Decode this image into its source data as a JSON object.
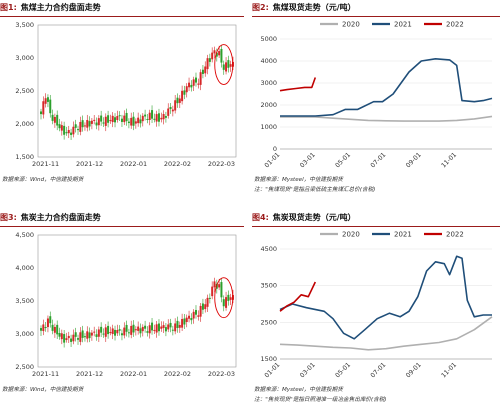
{
  "panels": [
    {
      "fig": "图1:",
      "title": "焦煤主力合约盘面走势",
      "source": "数据来源：Wind，中信建投期货",
      "note": ""
    },
    {
      "fig": "图2:",
      "title": "焦煤现货走势（元/吨）",
      "source": "数据来源：Mysteel，中信建投期货",
      "note": "注：\"焦煤现货\"是指吕梁低硫主焦煤汇总价(含税)"
    },
    {
      "fig": "图3:",
      "title": "焦炭主力合约盘面走势",
      "source": "数据来源：Wind，中信建投期货",
      "note": ""
    },
    {
      "fig": "图4:",
      "title": "焦炭现货走势（元/吨）",
      "source": "数据来源：Mysteel，中信建投期货",
      "note": "注：\"焦炭现货\"是指日照港准一级冶金焦出库价(含税)"
    }
  ],
  "chart_data": [
    {
      "type": "candlestick",
      "title": "焦煤主力合约盘面走势",
      "ylim": [
        1500,
        3500
      ],
      "yticks": [
        "3,500",
        "3,000",
        "2,500",
        "2,000",
        "1,500"
      ],
      "categories": [
        "2021-11",
        "2021-12",
        "2022-01",
        "2022-02",
        "2022-03"
      ],
      "up_color": "#d62728",
      "down_color": "#2ca02c",
      "close_points": [
        [
          0,
          2150
        ],
        [
          2,
          2450
        ],
        [
          4,
          2150
        ],
        [
          7,
          2000
        ],
        [
          11,
          1850
        ],
        [
          16,
          1960
        ],
        [
          22,
          2030
        ],
        [
          28,
          2050
        ],
        [
          34,
          2100
        ],
        [
          40,
          2020
        ],
        [
          46,
          2120
        ],
        [
          52,
          2080
        ],
        [
          58,
          2300
        ],
        [
          62,
          2500
        ],
        [
          64,
          2600
        ],
        [
          68,
          2650
        ],
        [
          72,
          2950
        ],
        [
          75,
          3100
        ],
        [
          77,
          3050
        ],
        [
          79,
          2850
        ],
        [
          81,
          2900
        ]
      ],
      "annotation": "red ellipse around latest candles"
    },
    {
      "type": "line",
      "title": "焦煤现货走势（元/吨）",
      "ylim": [
        0,
        5000
      ],
      "yticks": [
        "5000",
        "4000",
        "3000",
        "2000",
        "1000",
        "0"
      ],
      "xticks": [
        "01-01",
        "03-01",
        "05-01",
        "07-01",
        "09-01",
        "11-01"
      ],
      "legend_position": "top",
      "series": [
        {
          "name": "2020",
          "color": "#b0b0b0",
          "values": [
            [
              0,
              1460
            ],
            [
              2,
              1460
            ],
            [
              3,
              1400
            ],
            [
              4,
              1350
            ],
            [
              5,
              1300
            ],
            [
              6,
              1280
            ],
            [
              7,
              1270
            ],
            [
              8,
              1270
            ],
            [
              9,
              1270
            ],
            [
              10,
              1300
            ],
            [
              11,
              1370
            ],
            [
              12,
              1480
            ]
          ]
        },
        {
          "name": "2021",
          "color": "#1f4e79",
          "values": [
            [
              0,
              1500
            ],
            [
              1,
              1500
            ],
            [
              2,
              1500
            ],
            [
              3,
              1560
            ],
            [
              3.7,
              1800
            ],
            [
              4.4,
              1800
            ],
            [
              5.3,
              2150
            ],
            [
              5.8,
              2150
            ],
            [
              6.4,
              2500
            ],
            [
              7.3,
              3500
            ],
            [
              8,
              4000
            ],
            [
              8.8,
              4100
            ],
            [
              9.6,
              4050
            ],
            [
              10,
              3800
            ],
            [
              10.3,
              2200
            ],
            [
              11,
              2150
            ],
            [
              11.5,
              2200
            ],
            [
              12,
              2300
            ]
          ]
        },
        {
          "name": "2022",
          "color": "#c00000",
          "values": [
            [
              0,
              2650
            ],
            [
              0.4,
              2700
            ],
            [
              0.9,
              2750
            ],
            [
              1.4,
              2800
            ],
            [
              1.8,
              2800
            ],
            [
              2.0,
              3250
            ]
          ]
        }
      ]
    },
    {
      "type": "candlestick",
      "title": "焦炭主力合约盘面走势",
      "ylim": [
        2500,
        4500
      ],
      "yticks": [
        "4,500",
        "4,000",
        "3,500",
        "3,000",
        "2,500"
      ],
      "categories": [
        "2021-11",
        "2021-12",
        "2022-01",
        "2022-02",
        "2022-03"
      ],
      "up_color": "#d62728",
      "down_color": "#2ca02c",
      "close_points": [
        [
          0,
          3050
        ],
        [
          3,
          3200
        ],
        [
          6,
          3050
        ],
        [
          10,
          2920
        ],
        [
          16,
          2960
        ],
        [
          22,
          3000
        ],
        [
          28,
          3040
        ],
        [
          34,
          3030
        ],
        [
          40,
          3070
        ],
        [
          46,
          3070
        ],
        [
          52,
          3100
        ],
        [
          58,
          3100
        ],
        [
          64,
          3250
        ],
        [
          68,
          3320
        ],
        [
          72,
          3500
        ],
        [
          75,
          3780
        ],
        [
          77,
          3700
        ],
        [
          79,
          3450
        ],
        [
          81,
          3550
        ]
      ],
      "annotation": "red ellipse around latest candles"
    },
    {
      "type": "line",
      "title": "焦炭现货走势（元/吨）",
      "ylim": [
        1500,
        4500
      ],
      "yticks": [
        "4500",
        "3500",
        "2500",
        "1500"
      ],
      "xticks": [
        "01-01",
        "03-01",
        "05-01",
        "07-01",
        "09-01",
        "11-01"
      ],
      "legend_position": "top",
      "series": [
        {
          "name": "2020",
          "color": "#b0b0b0",
          "values": [
            [
              0,
              1900
            ],
            [
              1,
              1880
            ],
            [
              2,
              1850
            ],
            [
              3,
              1820
            ],
            [
              4,
              1800
            ],
            [
              5,
              1750
            ],
            [
              6,
              1780
            ],
            [
              7,
              1850
            ],
            [
              8,
              1900
            ],
            [
              9,
              1950
            ],
            [
              10,
              2050
            ],
            [
              11,
              2300
            ],
            [
              12,
              2650
            ]
          ]
        },
        {
          "name": "2021",
          "color": "#1f4e79",
          "values": [
            [
              0,
              2850
            ],
            [
              0.7,
              3000
            ],
            [
              1.5,
              2900
            ],
            [
              2.5,
              2800
            ],
            [
              3,
              2600
            ],
            [
              3.6,
              2200
            ],
            [
              4.2,
              2050
            ],
            [
              4.8,
              2300
            ],
            [
              5.5,
              2600
            ],
            [
              6.2,
              2750
            ],
            [
              6.8,
              2650
            ],
            [
              7.3,
              2800
            ],
            [
              7.8,
              3200
            ],
            [
              8.3,
              3900
            ],
            [
              8.8,
              4150
            ],
            [
              9.3,
              4100
            ],
            [
              9.6,
              3800
            ],
            [
              10,
              4300
            ],
            [
              10.3,
              4250
            ],
            [
              10.6,
              3100
            ],
            [
              11,
              2650
            ],
            [
              11.5,
              2700
            ],
            [
              12,
              2700
            ]
          ]
        },
        {
          "name": "2022",
          "color": "#c00000",
          "values": [
            [
              0,
              2800
            ],
            [
              0.4,
              2950
            ],
            [
              0.8,
              3050
            ],
            [
              1.2,
              3250
            ],
            [
              1.6,
              3200
            ],
            [
              2.0,
              3600
            ]
          ]
        }
      ]
    }
  ]
}
